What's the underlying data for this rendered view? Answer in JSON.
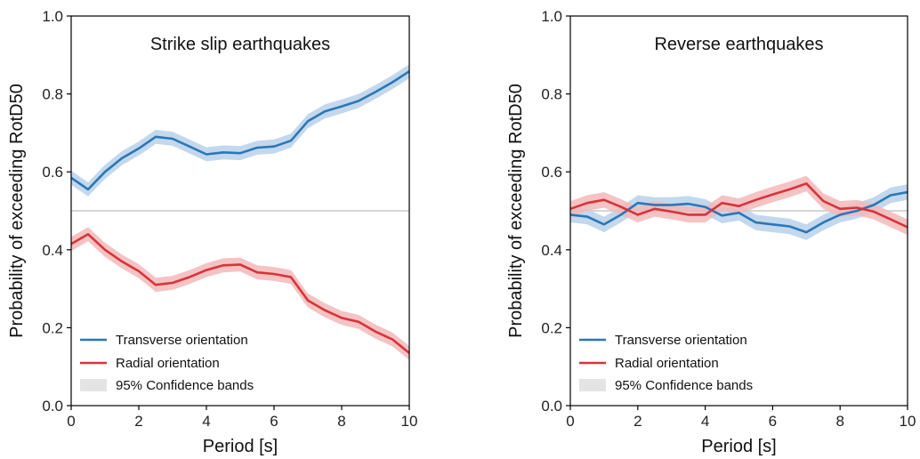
{
  "figure": {
    "colors": {
      "transverse": "#2a77b6",
      "transverse_band": "#b9d1ea",
      "radial": "#d9333a",
      "radial_band": "#f2b8b9",
      "reference_line": "#c8c8c8",
      "legend_band": "#e4e4e4"
    }
  },
  "chart_data": [
    {
      "type": "line",
      "title": "Strike slip earthquakes",
      "xlabel": "Period [s]",
      "ylabel": "Probability of exceeding RotD50",
      "xlim": [
        0,
        10
      ],
      "ylim": [
        0,
        1
      ],
      "x_ticks": [
        "0",
        "2",
        "4",
        "6",
        "8",
        "10"
      ],
      "y_ticks": [
        "0.0",
        "0.2",
        "0.4",
        "0.6",
        "0.8",
        "1.0"
      ],
      "reference_line": 0.5,
      "legend": {
        "placement": "lower-left",
        "entries": [
          "Transverse orientation",
          "Radial orientation",
          "95% Confidence bands"
        ]
      },
      "x": [
        0,
        0.5,
        1,
        1.5,
        2,
        2.5,
        3,
        3.5,
        4,
        4.5,
        5,
        5.5,
        6,
        6.5,
        7,
        7.5,
        8,
        8.5,
        9,
        9.5,
        10
      ],
      "series": [
        {
          "name": "Transverse orientation",
          "values": [
            0.585,
            0.555,
            0.6,
            0.635,
            0.66,
            0.69,
            0.685,
            0.665,
            0.645,
            0.65,
            0.648,
            0.662,
            0.665,
            0.68,
            0.73,
            0.755,
            0.768,
            0.782,
            0.805,
            0.83,
            0.858
          ],
          "band": 0.018
        },
        {
          "name": "Radial orientation",
          "values": [
            0.415,
            0.44,
            0.4,
            0.37,
            0.345,
            0.31,
            0.315,
            0.33,
            0.348,
            0.36,
            0.362,
            0.342,
            0.338,
            0.33,
            0.27,
            0.245,
            0.225,
            0.215,
            0.19,
            0.17,
            0.135
          ],
          "band": 0.018
        }
      ]
    },
    {
      "type": "line",
      "title": "Reverse earthquakes",
      "xlabel": "Period [s]",
      "ylabel": "Probability of exceeding RotD50",
      "xlim": [
        0,
        10
      ],
      "ylim": [
        0,
        1
      ],
      "x_ticks": [
        "0",
        "2",
        "4",
        "6",
        "8",
        "10"
      ],
      "y_ticks": [
        "0.0",
        "0.2",
        "0.4",
        "0.6",
        "0.8",
        "1.0"
      ],
      "reference_line": 0.5,
      "legend": {
        "placement": "lower-left",
        "entries": [
          "Transverse orientation",
          "Radial orientation",
          "95% Confidence bands"
        ]
      },
      "x": [
        0,
        0.5,
        1,
        1.5,
        2,
        2.5,
        3,
        3.5,
        4,
        4.5,
        5,
        5.5,
        6,
        6.5,
        7,
        7.5,
        8,
        8.5,
        9,
        9.5,
        10
      ],
      "series": [
        {
          "name": "Transverse orientation",
          "values": [
            0.49,
            0.485,
            0.465,
            0.49,
            0.52,
            0.515,
            0.515,
            0.518,
            0.51,
            0.488,
            0.495,
            0.47,
            0.465,
            0.46,
            0.445,
            0.47,
            0.49,
            0.5,
            0.515,
            0.54,
            0.548
          ],
          "band": 0.02
        },
        {
          "name": "Radial orientation",
          "values": [
            0.505,
            0.52,
            0.528,
            0.51,
            0.49,
            0.505,
            0.498,
            0.49,
            0.49,
            0.52,
            0.512,
            0.528,
            0.542,
            0.555,
            0.57,
            0.525,
            0.505,
            0.508,
            0.498,
            0.478,
            0.458
          ],
          "band": 0.02
        }
      ]
    }
  ]
}
